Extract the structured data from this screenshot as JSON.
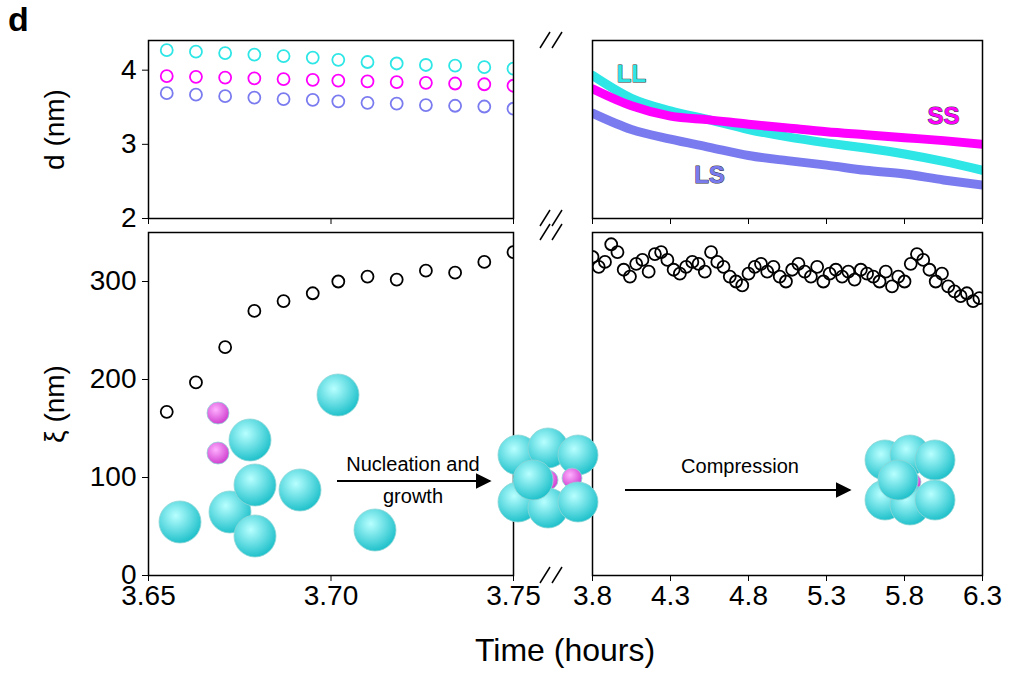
{
  "panel_label": "d",
  "chart_data": [
    {
      "type": "line",
      "ylabel": "d (nm)",
      "ylim": [
        2,
        4.4
      ],
      "yticks": [
        2,
        3,
        4
      ],
      "tick_labels": "y",
      "segments": [
        {
          "xlim": [
            3.65,
            3.75
          ],
          "xticks": [
            3.65,
            {
              "value": 3.7,
              "label": "3.70"
            },
            3.75
          ],
          "series": [
            {
              "color": "#2ee6e6",
              "type": "scatter",
              "marker": "circle",
              "x": [
                3.655,
                3.663,
                3.671,
                3.679,
                3.687,
                3.695,
                3.702,
                3.71,
                3.718,
                3.726,
                3.734,
                3.742,
                3.75
              ],
              "values": [
                4.27,
                4.25,
                4.23,
                4.21,
                4.19,
                4.17,
                4.14,
                4.11,
                4.09,
                4.07,
                4.06,
                4.04,
                4.02
              ]
            },
            {
              "color": "#ff00ff",
              "type": "scatter",
              "marker": "circle",
              "x": [
                3.655,
                3.663,
                3.671,
                3.679,
                3.687,
                3.695,
                3.702,
                3.71,
                3.718,
                3.726,
                3.734,
                3.742,
                3.75
              ],
              "values": [
                3.92,
                3.91,
                3.9,
                3.89,
                3.88,
                3.87,
                3.86,
                3.85,
                3.84,
                3.83,
                3.82,
                3.81,
                3.79
              ]
            },
            {
              "color": "#7b7bf0",
              "type": "scatter",
              "marker": "circle",
              "x": [
                3.655,
                3.663,
                3.671,
                3.679,
                3.687,
                3.695,
                3.702,
                3.71,
                3.718,
                3.726,
                3.734,
                3.742,
                3.75
              ],
              "values": [
                3.69,
                3.67,
                3.65,
                3.63,
                3.61,
                3.6,
                3.58,
                3.56,
                3.55,
                3.53,
                3.52,
                3.51,
                3.48
              ]
            }
          ]
        },
        {
          "xlim": [
            3.8,
            6.3
          ],
          "xticks": [
            3.8,
            4.3,
            4.8,
            5.3,
            5.8,
            6.3
          ],
          "series": [
            {
              "name": "LL",
              "color": "#2ee6e6",
              "type": "line",
              "x": [
                3.8,
                4.05,
                4.3,
                4.55,
                4.8,
                5.05,
                5.3,
                5.55,
                5.8,
                6.05,
                6.3
              ],
              "values": [
                3.93,
                3.62,
                3.45,
                3.33,
                3.2,
                3.1,
                3.02,
                2.95,
                2.87,
                2.77,
                2.65
              ]
            },
            {
              "name": "SS",
              "color": "#ff00ff",
              "type": "line",
              "x": [
                3.8,
                4.05,
                4.3,
                4.55,
                4.8,
                5.05,
                5.3,
                5.55,
                5.8,
                6.05,
                6.3
              ],
              "values": [
                3.75,
                3.52,
                3.38,
                3.33,
                3.27,
                3.22,
                3.17,
                3.13,
                3.09,
                3.05,
                3.0
              ]
            },
            {
              "name": "LS",
              "color": "#7b7bf0",
              "type": "line",
              "x": [
                3.8,
                4.05,
                4.3,
                4.55,
                4.8,
                5.05,
                5.3,
                5.55,
                5.8,
                6.05,
                6.3
              ],
              "values": [
                3.42,
                3.2,
                3.07,
                2.96,
                2.85,
                2.78,
                2.72,
                2.65,
                2.6,
                2.52,
                2.45
              ]
            }
          ]
        }
      ]
    },
    {
      "type": "scatter",
      "xlabel": "Time (hours)",
      "ylabel": "ξ (nm)",
      "ylim": [
        0,
        350
      ],
      "yticks": [
        0,
        100,
        200,
        300
      ],
      "annotations": [
        "Nucleation and growth",
        "Compression"
      ],
      "segments": [
        {
          "xlim": [
            3.65,
            3.75
          ],
          "xticks": [
            3.65,
            {
              "value": 3.7,
              "label": "3.70"
            },
            3.75
          ],
          "series": [
            {
              "color": "#000000",
              "marker": "circle",
              "x": [
                3.655,
                3.663,
                3.671,
                3.679,
                3.687,
                3.695,
                3.702,
                3.71,
                3.718,
                3.726,
                3.734,
                3.742,
                3.75
              ],
              "values": [
                167,
                197,
                233,
                270,
                280,
                288,
                300,
                305,
                302,
                311,
                309,
                320,
                330
              ]
            }
          ]
        },
        {
          "xlim": [
            3.8,
            6.3
          ],
          "xticks": [
            3.8,
            4.3,
            4.8,
            5.3,
            5.8,
            6.3
          ],
          "series": [
            {
              "color": "#000000",
              "marker": "circle",
              "x": [
                3.8,
                3.84,
                3.88,
                3.92,
                3.96,
                4.0,
                4.04,
                4.08,
                4.12,
                4.16,
                4.2,
                4.24,
                4.28,
                4.32,
                4.36,
                4.4,
                4.44,
                4.48,
                4.52,
                4.56,
                4.6,
                4.64,
                4.68,
                4.72,
                4.76,
                4.8,
                4.84,
                4.88,
                4.92,
                4.96,
                5.0,
                5.04,
                5.08,
                5.12,
                5.16,
                5.2,
                5.24,
                5.28,
                5.32,
                5.36,
                5.4,
                5.44,
                5.48,
                5.52,
                5.56,
                5.6,
                5.64,
                5.68,
                5.72,
                5.76,
                5.8,
                5.84,
                5.88,
                5.92,
                5.96,
                6.0,
                6.04,
                6.08,
                6.12,
                6.16,
                6.2,
                6.24,
                6.28
              ],
              "values": [
                325,
                315,
                320,
                338,
                330,
                312,
                305,
                318,
                322,
                310,
                328,
                330,
                322,
                312,
                308,
                315,
                320,
                318,
                310,
                330,
                320,
                315,
                305,
                300,
                296,
                308,
                315,
                318,
                310,
                315,
                305,
                300,
                312,
                318,
                310,
                305,
                315,
                300,
                308,
                312,
                305,
                310,
                302,
                312,
                308,
                305,
                300,
                310,
                295,
                305,
                300,
                318,
                328,
                322,
                312,
                300,
                308,
                295,
                290,
                285,
                288,
                280,
                283
              ]
            }
          ]
        }
      ]
    }
  ]
}
